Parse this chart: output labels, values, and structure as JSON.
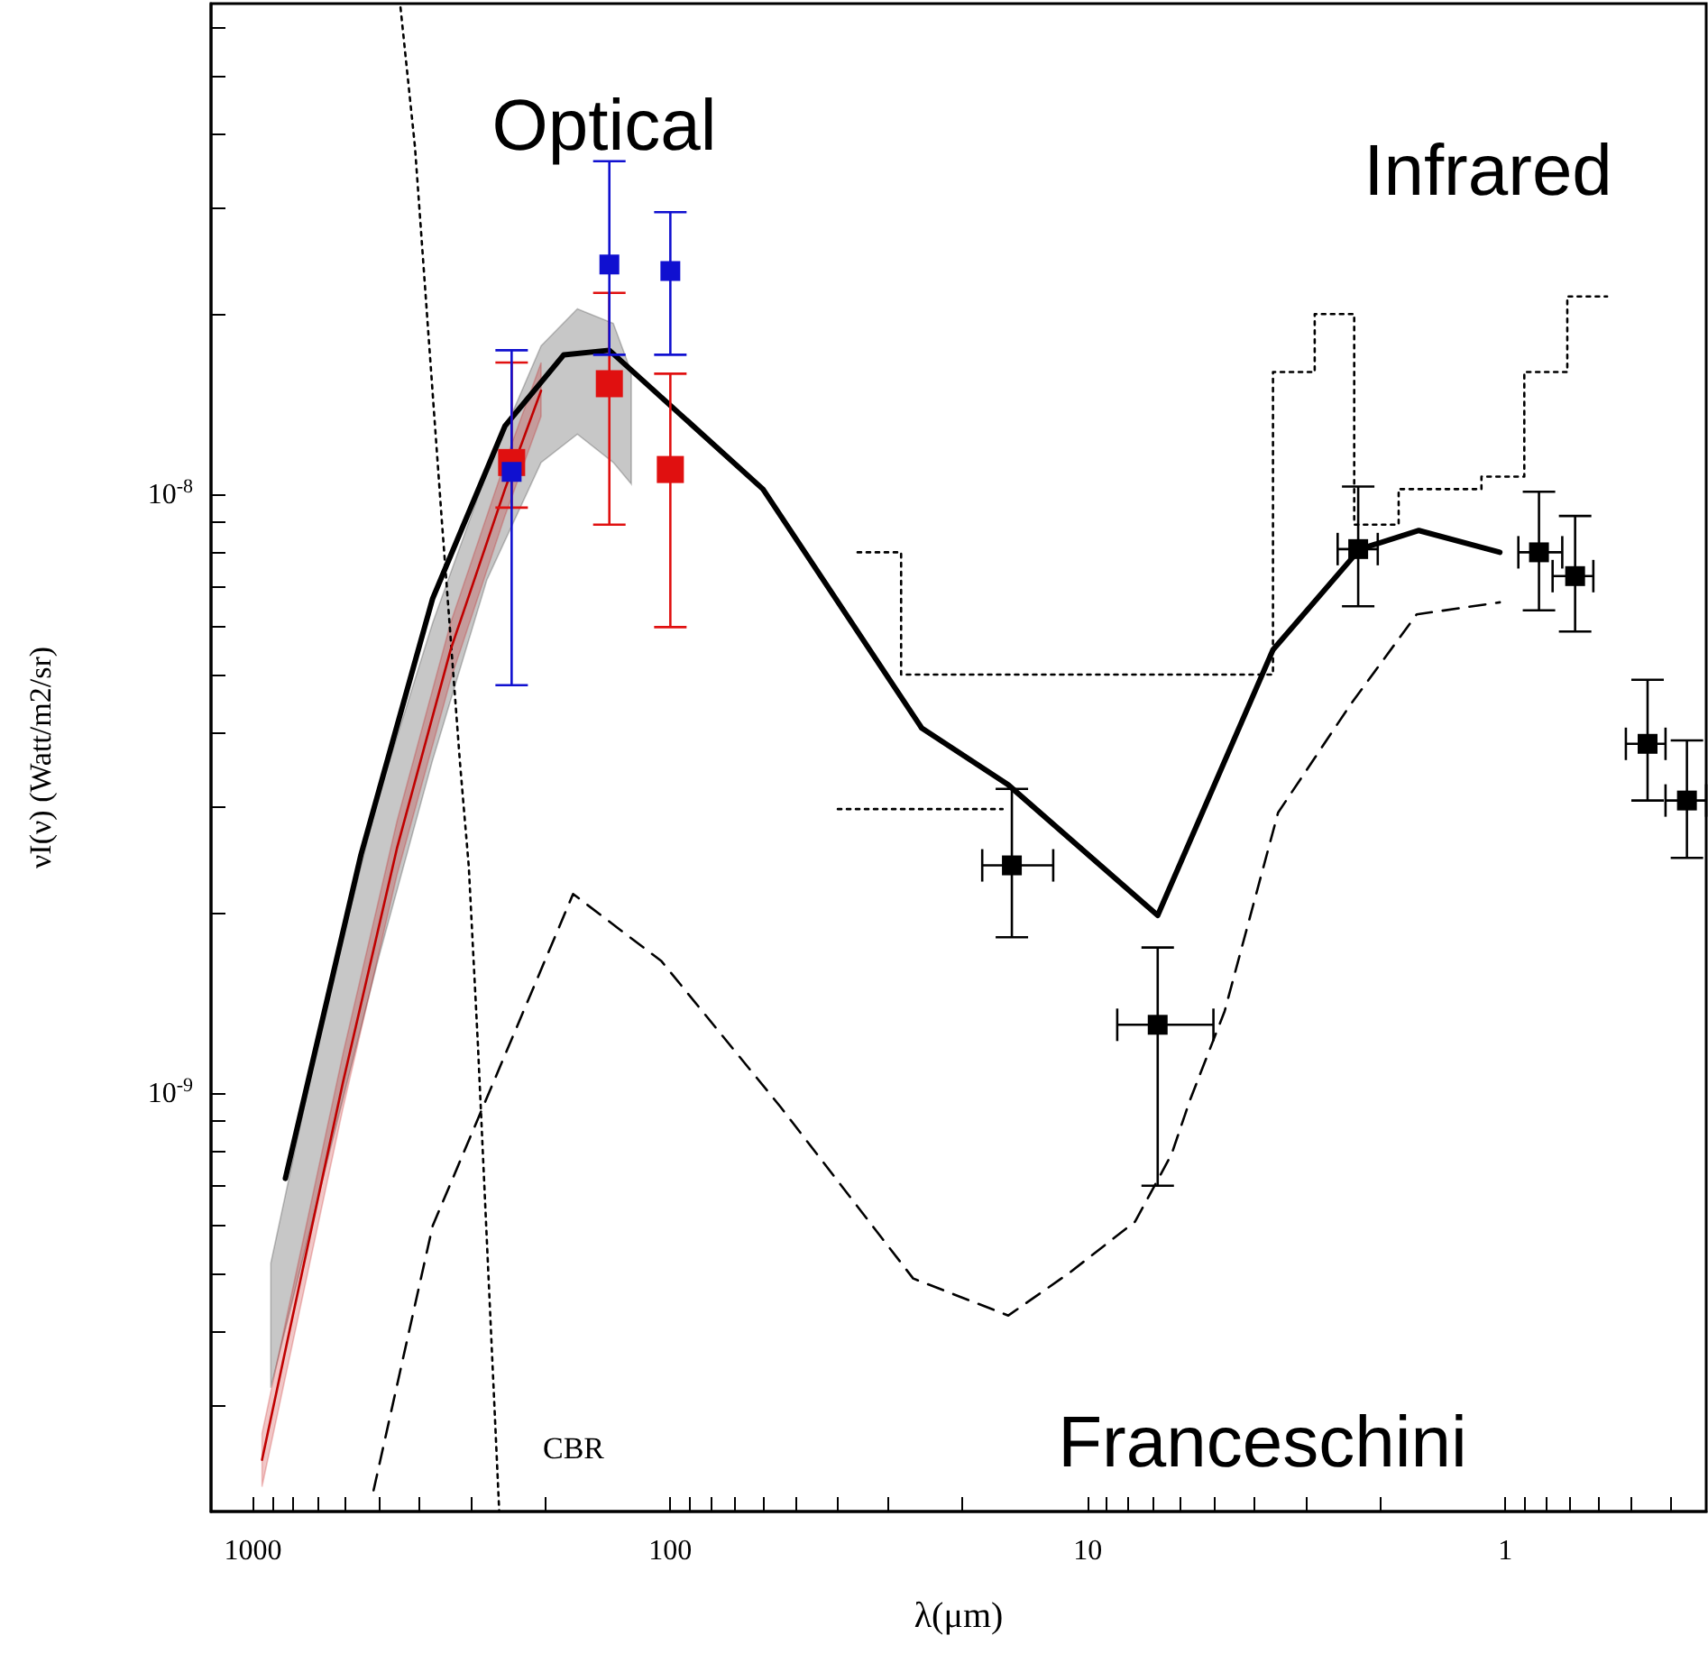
{
  "chart_data": {
    "type": "line",
    "xlabel": "λ(μm)",
    "ylabel": "νI(ν) (Watt/m2/sr)",
    "log": "xy",
    "xlim": [
      1260,
      0.33
    ],
    "ylim": [
      2e-10,
      6.6e-08
    ],
    "xticks": [
      1000,
      {
        "value": 900,
        "label": null
      },
      {
        "value": 800,
        "label": null
      },
      {
        "value": 700,
        "label": null
      },
      {
        "value": 600,
        "label": null
      },
      {
        "value": 500,
        "label": null
      },
      {
        "value": 400,
        "label": null
      },
      {
        "value": 300,
        "label": null
      },
      {
        "value": 200,
        "label": null
      },
      100,
      {
        "value": 90,
        "label": null
      },
      {
        "value": 80,
        "label": null
      },
      {
        "value": 70,
        "label": null
      },
      {
        "value": 60,
        "label": null
      },
      {
        "value": 50,
        "label": null
      },
      {
        "value": 40,
        "label": null
      },
      {
        "value": 30,
        "label": null
      },
      {
        "value": 20,
        "label": null
      },
      10,
      {
        "value": 9,
        "label": null
      },
      {
        "value": 8,
        "label": null
      },
      {
        "value": 7,
        "label": null
      },
      {
        "value": 6,
        "label": null
      },
      {
        "value": 5,
        "label": null
      },
      {
        "value": 4,
        "label": null
      },
      {
        "value": 3,
        "label": null
      },
      {
        "value": 2,
        "label": null
      },
      1,
      {
        "value": 0.9,
        "label": null
      },
      {
        "value": 0.8,
        "label": null
      },
      {
        "value": 0.7,
        "label": null
      },
      {
        "value": 0.6,
        "label": null
      },
      {
        "value": 0.5,
        "label": null
      },
      {
        "value": 0.4,
        "label": null
      }
    ],
    "yticks": [
      {
        "value": 3e-10,
        "label": null
      },
      {
        "value": 4e-10,
        "label": null
      },
      {
        "value": 5e-10,
        "label": null
      },
      {
        "value": 6e-10,
        "label": null
      },
      {
        "value": 7e-10,
        "label": null
      },
      {
        "value": 8e-10,
        "label": null
      },
      {
        "value": 9e-10,
        "label": null
      },
      {
        "value": 1e-09,
        "label": "10$^{-9}$"
      },
      {
        "value": 2e-09,
        "label": null
      },
      {
        "value": 3e-09,
        "label": null
      },
      {
        "value": 4e-09,
        "label": null
      },
      {
        "value": 5e-09,
        "label": null
      },
      {
        "value": 6e-09,
        "label": null
      },
      {
        "value": 7e-09,
        "label": null
      },
      {
        "value": 8e-09,
        "label": null
      },
      {
        "value": 9e-09,
        "label": null
      },
      {
        "value": 1e-08,
        "label": "10$^{-8}$"
      },
      {
        "value": 2e-08,
        "label": null
      },
      {
        "value": 3e-08,
        "label": null
      },
      {
        "value": 4e-08,
        "label": null
      },
      {
        "value": 5e-08,
        "label": null
      },
      {
        "value": 6e-08,
        "label": null
      }
    ],
    "series": [
      {
        "color": "#000000",
        "marker": "none",
        "line_style": "solid",
        "x": [
          836,
          551,
          371,
          249,
          180,
          140,
          60,
          25,
          15.5,
          6.8,
          3.6,
          2.23,
          1.61,
          1.03
        ],
        "values": [
          7.2e-10,
          2.5e-09,
          6.7e-09,
          1.3e-08,
          1.71e-08,
          1.74e-08,
          1.02e-08,
          4.07e-09,
          3.27e-09,
          1.98e-09,
          5.5e-09,
          8.1e-09,
          8.7e-09,
          8e-09
        ]
      },
      {
        "color": "#000000",
        "marker": "none",
        "line_style": "dashed",
        "x": [
          514,
          371,
          171,
          105,
          54.6,
          26.2,
          15.5,
          11.1,
          7.7,
          6.3,
          5.7,
          4.7,
          3.5,
          2.35,
          1.63,
          1.03
        ],
        "values": [
          2.17e-10,
          6e-10,
          2.15e-09,
          1.66e-09,
          9.5e-10,
          4.9e-10,
          4.25e-10,
          5e-10,
          6.1e-10,
          7.9e-10,
          9.7e-10,
          1.37e-09,
          2.94e-09,
          4.45e-09,
          6.3e-09,
          6.6e-09
        ]
      },
      {
        "color": "#000000",
        "marker": "none",
        "line_style": "dotted",
        "x": [
          443,
          409,
          353,
          319,
          304,
          289,
          257
        ],
        "values": [
          6.5e-08,
          3.8e-08,
          9.1e-09,
          3.55e-09,
          2.39e-09,
          1.2e-09,
          2e-10
        ]
      },
      {
        "type": "step",
        "color": "#000000",
        "marker": "none",
        "line_style": "dotted",
        "x": [
          35.6,
          28,
          3.6,
          2.86,
          2.3,
          1.8,
          1.14,
          0.9,
          0.71,
          0.57
        ],
        "values": [
          8e-09,
          5e-09,
          1.6e-08,
          2e-08,
          8.9e-09,
          1.02e-08,
          1.07e-08,
          1.6e-08,
          2.14e-08,
          2.14e-08
        ]
      },
      {
        "color": "#000000",
        "marker": "none",
        "line_style": "dotted",
        "x": [
          39.7,
          16
        ],
        "values": [
          2.98e-09,
          2.98e-09
        ]
      },
      {
        "color": "#000000",
        "x": [
          906,
          673,
          499,
          371,
          275,
          204,
          167,
          137,
          124
        ],
        "values": [
          null,
          null,
          null,
          null,
          null,
          null,
          null,
          null,
          null
        ],
        "lower": [
          3.22e-10,
          7.4e-10,
          1.69e-09,
          3.6e-09,
          7.2e-09,
          1.13e-08,
          1.26e-08,
          1.13e-08,
          1.04e-08
        ],
        "upper": [
          5.2e-10,
          1.37e-09,
          3.15e-09,
          6.1e-09,
          1.09e-08,
          1.77e-08,
          2.04e-08,
          1.93e-08,
          1.6e-08
        ]
      },
      {
        "color": "#c00000",
        "marker": "none",
        "line_style": "solid",
        "x": [
          951,
          820,
          609,
          452,
          336,
          249,
          204
        ],
        "values": [
          2.44e-10,
          3.96e-10,
          1.04e-09,
          2.56e-09,
          5.5e-09,
          1.02e-08,
          1.49e-08
        ],
        "lower": [
          2.2e-10,
          3.57e-10,
          9.4e-10,
          2.31e-09,
          4.9e-09,
          9.2e-09,
          1.35e-08
        ],
        "upper": [
          2.7e-10,
          4.4e-10,
          1.16e-09,
          2.84e-09,
          6.1e-09,
          1.13e-08,
          1.66e-08
        ]
      },
      {
        "type": "scatter",
        "color": "#e01010",
        "marker": "square",
        "x": [
          240,
          140,
          100
        ],
        "values": [
          1.13e-08,
          1.53e-08,
          1.1e-08
        ],
        "errors": [
          [
            9.5e-09,
            1.66e-08
          ],
          [
            8.9e-09,
            2.17e-08
          ],
          [
            6e-09,
            1.59e-08
          ]
        ]
      },
      {
        "type": "scatter",
        "color": "#1010d0",
        "marker": "square",
        "x": [
          240,
          140,
          100
        ],
        "values": [
          1.09e-08,
          2.42e-08,
          2.36e-08
        ],
        "errors": [
          [
            4.8e-09,
            1.74e-08
          ],
          [
            1.71e-08,
            3.6e-08
          ],
          [
            1.71e-08,
            2.96e-08
          ]
        ]
      },
      {
        "type": "scatter",
        "color": "#000000",
        "marker": "square",
        "x": [
          2.25,
          0.83,
          0.68,
          0.456,
          0.367
        ],
        "values": [
          8.1e-09,
          8e-09,
          7.3e-09,
          3.83e-09,
          3.08e-09
        ],
        "errors": [
          [
            6.5e-09,
            1.03e-08
          ],
          [
            6.4e-09,
            1.01e-08
          ],
          [
            5.9e-09,
            9.2e-09
          ],
          [
            3.08e-09,
            4.9e-09
          ],
          [
            2.47e-09,
            3.88e-09
          ]
        ],
        "xerrors": [
          [
            2.02,
            2.52
          ],
          [
            0.73,
            0.93
          ],
          [
            0.615,
            0.77
          ],
          [
            0.413,
            0.514
          ],
          [
            0.33,
            0.413
          ]
        ]
      },
      {
        "type": "scatter",
        "color": "#000000",
        "marker": "square",
        "x": [
          15.2,
          6.8
        ],
        "values": [
          2.4e-09,
          1.3e-09
        ],
        "errors": [
          [
            1.82e-09,
            3.22e-09
          ],
          [
            7e-10,
            1.75e-09
          ]
        ],
        "xerrors": [
          [
            12.1,
            17.9
          ],
          [
            5.0,
            8.5
          ]
        ]
      }
    ],
    "annotations": [
      "Optical",
      "Infrared",
      "Franceschini",
      "CBR"
    ]
  }
}
